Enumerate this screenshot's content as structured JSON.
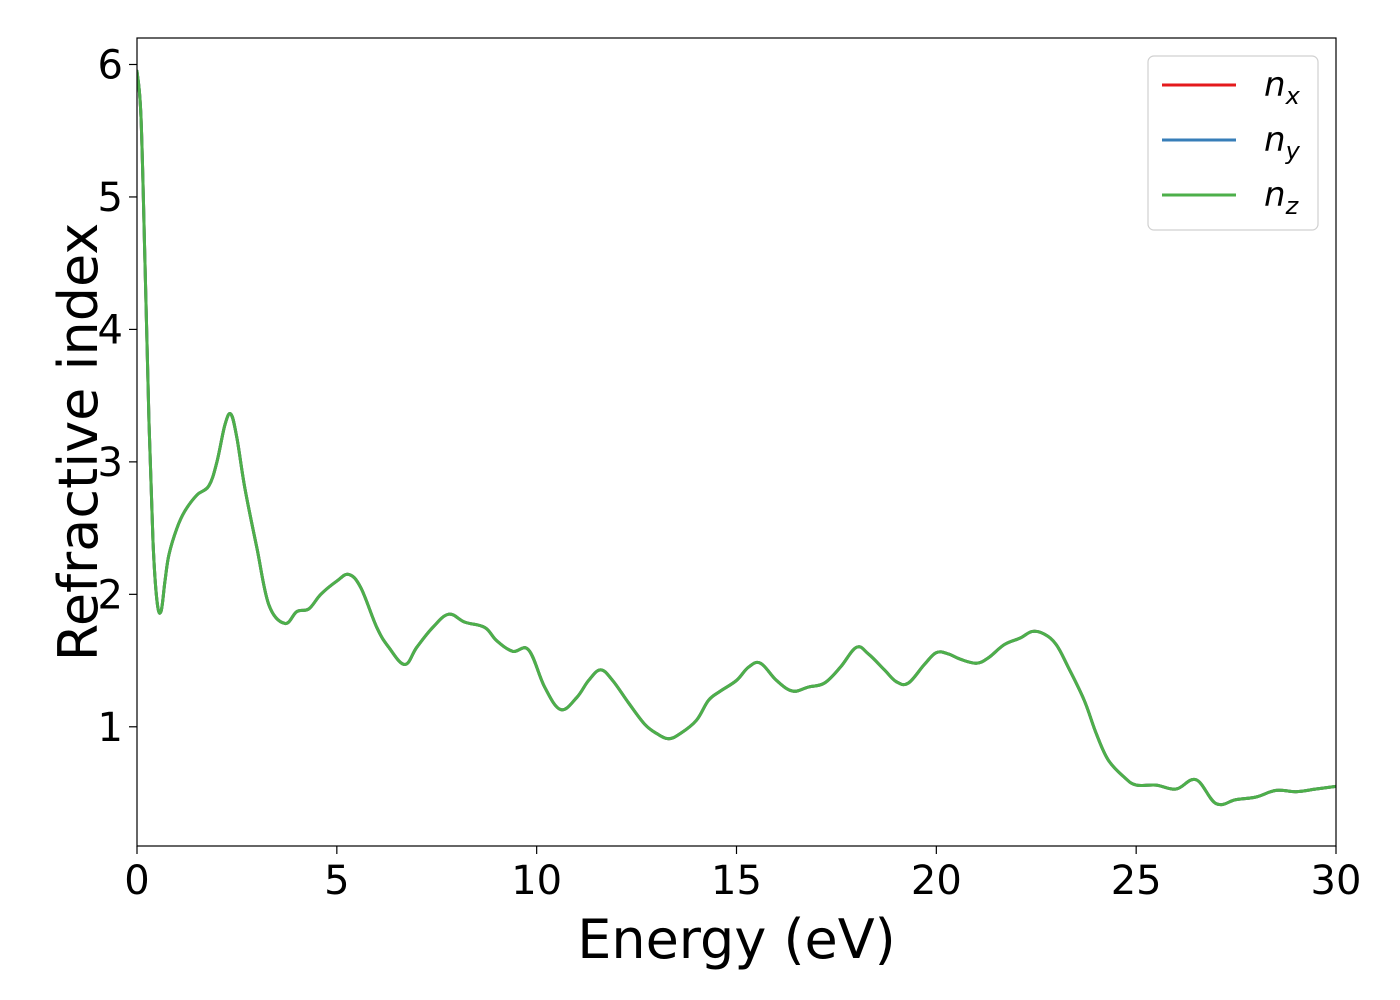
{
  "chart_data": {
    "type": "line",
    "title": "",
    "xlabel": "Energy (eV)",
    "ylabel": "Refractive index",
    "xlim": [
      0,
      30
    ],
    "ylim": [
      0.1,
      6.2
    ],
    "xticks": [
      0,
      5,
      10,
      15,
      20,
      25,
      30
    ],
    "yticks": [
      1,
      2,
      3,
      4,
      5,
      6
    ],
    "grid": false,
    "legend_position": "top-right",
    "x": [
      0,
      0.1,
      0.2,
      0.3,
      0.4,
      0.5,
      0.6,
      0.7,
      0.8,
      1.0,
      1.2,
      1.5,
      1.8,
      2.0,
      2.2,
      2.35,
      2.5,
      2.7,
      3.0,
      3.3,
      3.7,
      4.0,
      4.3,
      4.6,
      5.0,
      5.3,
      5.6,
      6.0,
      6.3,
      6.7,
      7.0,
      7.4,
      7.8,
      8.2,
      8.7,
      9.0,
      9.4,
      9.8,
      10.2,
      10.6,
      11.0,
      11.3,
      11.6,
      11.9,
      12.3,
      12.7,
      13.0,
      13.3,
      13.6,
      14.0,
      14.3,
      14.6,
      15.0,
      15.3,
      15.6,
      16.0,
      16.4,
      16.8,
      17.2,
      17.6,
      18.0,
      18.3,
      18.7,
      19.0,
      19.3,
      19.7,
      20.0,
      20.3,
      20.6,
      21.0,
      21.3,
      21.7,
      22.1,
      22.4,
      22.7,
      23.0,
      23.3,
      23.7,
      24.0,
      24.3,
      24.7,
      25.0,
      25.5,
      26.0,
      26.5,
      27.0,
      27.5,
      28.0,
      28.5,
      29.0,
      29.5,
      30.0
    ],
    "series": [
      {
        "name": "n_x",
        "color": "#e41a1c",
        "values": [
          5.95,
          5.6,
          4.5,
          3.3,
          2.4,
          1.95,
          1.87,
          2.1,
          2.3,
          2.5,
          2.63,
          2.75,
          2.82,
          3.0,
          3.28,
          3.36,
          3.18,
          2.8,
          2.35,
          1.92,
          1.78,
          1.87,
          1.89,
          2.0,
          2.1,
          2.15,
          2.05,
          1.75,
          1.6,
          1.47,
          1.6,
          1.75,
          1.85,
          1.79,
          1.75,
          1.65,
          1.57,
          1.58,
          1.3,
          1.13,
          1.22,
          1.35,
          1.43,
          1.35,
          1.18,
          1.02,
          0.95,
          0.91,
          0.95,
          1.05,
          1.2,
          1.27,
          1.35,
          1.45,
          1.48,
          1.35,
          1.27,
          1.3,
          1.33,
          1.45,
          1.6,
          1.55,
          1.43,
          1.34,
          1.33,
          1.47,
          1.56,
          1.55,
          1.51,
          1.48,
          1.52,
          1.62,
          1.67,
          1.72,
          1.7,
          1.62,
          1.45,
          1.2,
          0.95,
          0.75,
          0.62,
          0.56,
          0.56,
          0.53,
          0.6,
          0.42,
          0.45,
          0.47,
          0.52,
          0.51,
          0.53,
          0.55
        ]
      },
      {
        "name": "n_y",
        "color": "#377eb8",
        "values": [
          5.95,
          5.6,
          4.5,
          3.3,
          2.4,
          1.95,
          1.87,
          2.1,
          2.3,
          2.5,
          2.63,
          2.75,
          2.82,
          3.0,
          3.28,
          3.36,
          3.18,
          2.8,
          2.35,
          1.92,
          1.78,
          1.87,
          1.89,
          2.0,
          2.1,
          2.15,
          2.05,
          1.75,
          1.6,
          1.47,
          1.6,
          1.75,
          1.85,
          1.79,
          1.75,
          1.65,
          1.57,
          1.58,
          1.3,
          1.13,
          1.22,
          1.35,
          1.43,
          1.35,
          1.18,
          1.02,
          0.95,
          0.91,
          0.95,
          1.05,
          1.2,
          1.27,
          1.35,
          1.45,
          1.48,
          1.35,
          1.27,
          1.3,
          1.33,
          1.45,
          1.6,
          1.55,
          1.43,
          1.34,
          1.33,
          1.47,
          1.56,
          1.55,
          1.51,
          1.48,
          1.52,
          1.62,
          1.67,
          1.72,
          1.7,
          1.62,
          1.45,
          1.2,
          0.95,
          0.75,
          0.62,
          0.56,
          0.56,
          0.53,
          0.6,
          0.42,
          0.45,
          0.47,
          0.52,
          0.51,
          0.53,
          0.55
        ]
      },
      {
        "name": "n_z",
        "color": "#4daf4a",
        "values": [
          5.95,
          5.6,
          4.5,
          3.3,
          2.4,
          1.95,
          1.87,
          2.1,
          2.3,
          2.5,
          2.63,
          2.75,
          2.82,
          3.0,
          3.28,
          3.36,
          3.18,
          2.8,
          2.35,
          1.92,
          1.78,
          1.87,
          1.89,
          2.0,
          2.1,
          2.15,
          2.05,
          1.75,
          1.6,
          1.47,
          1.6,
          1.75,
          1.85,
          1.79,
          1.75,
          1.65,
          1.57,
          1.58,
          1.3,
          1.13,
          1.22,
          1.35,
          1.43,
          1.35,
          1.18,
          1.02,
          0.95,
          0.91,
          0.95,
          1.05,
          1.2,
          1.27,
          1.35,
          1.45,
          1.48,
          1.35,
          1.27,
          1.3,
          1.33,
          1.45,
          1.6,
          1.55,
          1.43,
          1.34,
          1.33,
          1.47,
          1.56,
          1.55,
          1.51,
          1.48,
          1.52,
          1.62,
          1.67,
          1.72,
          1.7,
          1.62,
          1.45,
          1.2,
          0.95,
          0.75,
          0.62,
          0.56,
          0.56,
          0.53,
          0.6,
          0.42,
          0.45,
          0.47,
          0.52,
          0.51,
          0.53,
          0.55
        ]
      }
    ],
    "legend": [
      {
        "base": "n",
        "sub": "x",
        "color": "#e41a1c"
      },
      {
        "base": "n",
        "sub": "y",
        "color": "#377eb8"
      },
      {
        "base": "n",
        "sub": "z",
        "color": "#4daf4a"
      }
    ]
  }
}
